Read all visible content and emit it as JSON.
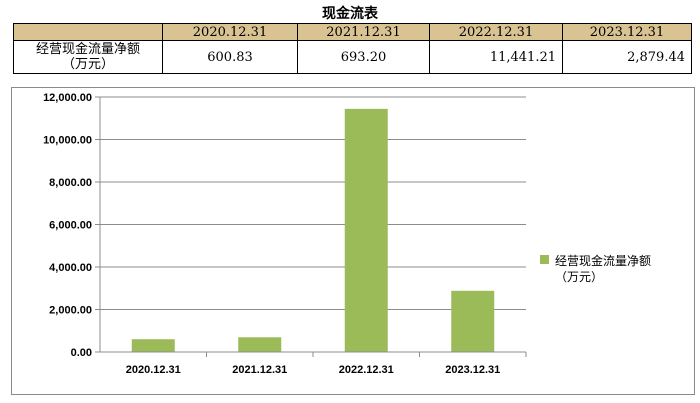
{
  "table": {
    "title": "现金流表",
    "header_blank": "",
    "columns": [
      "2020.12.31",
      "2021.12.31",
      "2022.12.31",
      "2023.12.31"
    ],
    "row_label_line1": "经营现金流量净额",
    "row_label_line2": "（万元）",
    "row_values": [
      "600.83",
      "693.20",
      "11,441.21",
      "2,879.44"
    ]
  },
  "colors": {
    "bar": "#9bbb59",
    "grid": "#8c8c8c",
    "header_bg": "#d9c393"
  },
  "chart_data": {
    "type": "bar",
    "categories": [
      "2020.12.31",
      "2021.12.31",
      "2022.12.31",
      "2023.12.31"
    ],
    "series": [
      {
        "name": "经营现金流量净额（万元）",
        "values": [
          600.83,
          693.2,
          11441.21,
          2879.44
        ]
      }
    ],
    "legend_line1": "经营现金流量净额",
    "legend_line2": "（万元）",
    "ylim": [
      0,
      12000
    ],
    "yticks": [
      0,
      2000,
      4000,
      6000,
      8000,
      10000,
      12000
    ],
    "ytick_labels": [
      "0.00",
      "2,000.00",
      "4,000.00",
      "6,000.00",
      "8,000.00",
      "10,000.00",
      "12,000.00"
    ],
    "grid": true,
    "legend_position": "right"
  }
}
